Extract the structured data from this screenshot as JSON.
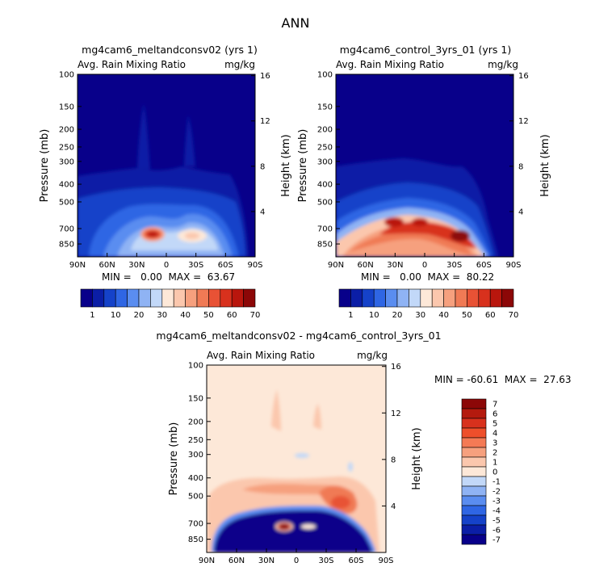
{
  "figure_title": "ANN",
  "panels": [
    {
      "title": "mg4cam6_meltandconsv02 (yrs 1)",
      "variable": "Avg. Rain Mixing Ratio",
      "units": "mg/kg",
      "ylabel": "Pressure (mb)",
      "y2label": "Height (km)",
      "stats_text": "MIN =   0.00  MAX =  63.67"
    },
    {
      "title": "mg4cam6_control_3yrs_01 (yrs 1)",
      "variable": "Avg. Rain Mixing Ratio",
      "units": "mg/kg",
      "ylabel": "Pressure (mb)",
      "y2label": "Height (km)",
      "stats_text": "MIN =   0.00  MAX =  80.22"
    },
    {
      "title": "mg4cam6_meltandconsv02 - mg4cam6_control_3yrs_01",
      "variable": "Avg. Rain Mixing Ratio",
      "units": "mg/kg",
      "ylabel": "Pressure (mb)",
      "y2label": "Height (km)",
      "stats_text": "MIN = -60.61  MAX =  27.63"
    }
  ],
  "colorbars": {
    "abs": {
      "labels": [
        "1",
        "10",
        "20",
        "30",
        "40",
        "50",
        "60",
        "70"
      ],
      "colors": [
        "#08008a",
        "#0b1ea6",
        "#1542c9",
        "#2f66e4",
        "#5a8df0",
        "#8fb3f4",
        "#c2d8f8",
        "#fde8d8",
        "#fbc7ad",
        "#f6a07e",
        "#f07a55",
        "#e85235",
        "#d8311d",
        "#b9160d",
        "#8c0707"
      ]
    },
    "diff": {
      "labels": [
        "7",
        "6",
        "5",
        "4",
        "3",
        "2",
        "1",
        "0",
        "-1",
        "-2",
        "-3",
        "-4",
        "-5",
        "-6",
        "-7"
      ],
      "colors": [
        "#8c0707",
        "#b41a0e",
        "#d8311d",
        "#ee4f2b",
        "#f47a55",
        "#f6a07e",
        "#fbc7ad",
        "#fde8d8",
        "#c2d8f8",
        "#8fb3f4",
        "#5a8df0",
        "#2f66e4",
        "#1542c9",
        "#0b1ea6",
        "#08008a"
      ]
    }
  },
  "chart_data": [
    {
      "type": "heatmap",
      "title": "mg4cam6_meltandconsv02 (yrs 1)",
      "x_ticks": [
        "90N",
        "60N",
        "30N",
        "0",
        "30S",
        "60S",
        "90S"
      ],
      "y_ticks_pressure": [
        100,
        150,
        200,
        250,
        300,
        400,
        500,
        700,
        850
      ],
      "y_ticks_height_km": [
        4,
        8,
        12,
        16
      ],
      "xlim": [
        "90N",
        "90S"
      ],
      "ylim_mb": [
        1000,
        100
      ],
      "min": 0.0,
      "max": 63.67,
      "features": [
        {
          "desc": "peak rain mixing ratio near 15N, 700 mb",
          "lat": 15,
          "p_mb": 700,
          "value": 63
        },
        {
          "desc": "secondary maximum near 25S, 700 mb",
          "lat": -25,
          "p_mb": 700,
          "value": 40
        },
        {
          "desc": "rain-free region above ~350-550 mb",
          "value": 0
        }
      ]
    },
    {
      "type": "heatmap",
      "title": "mg4cam6_control_3yrs_01 (yrs 1)",
      "x_ticks": [
        "90N",
        "60N",
        "30N",
        "0",
        "30S",
        "60S",
        "90S"
      ],
      "y_ticks_pressure": [
        100,
        150,
        200,
        250,
        300,
        400,
        500,
        700,
        850
      ],
      "y_ticks_height_km": [
        4,
        8,
        12,
        16
      ],
      "xlim": [
        "90N",
        "90S"
      ],
      "ylim_mb": [
        1000,
        100
      ],
      "min": 0.0,
      "max": 80.22,
      "features": [
        {
          "desc": "broad arch of values 40-60 near 600 mb across tropics",
          "lat": 0,
          "p_mb": 620,
          "value": 60
        },
        {
          "desc": "maximum near 35S, 700 mb",
          "lat": -35,
          "p_mb": 710,
          "value": 80
        }
      ]
    },
    {
      "type": "heatmap",
      "title": "mg4cam6_meltandconsv02 - mg4cam6_control_3yrs_01",
      "x_ticks": [
        "90N",
        "60N",
        "30N",
        "0",
        "30S",
        "60S",
        "90S"
      ],
      "y_ticks_pressure": [
        100,
        150,
        200,
        250,
        300,
        400,
        500,
        700,
        850
      ],
      "y_ticks_height_km": [
        4,
        8,
        12,
        16
      ],
      "xlim": [
        "90N",
        "90S"
      ],
      "ylim_mb": [
        1000,
        100
      ],
      "min": -60.61,
      "max": 27.63,
      "features": [
        {
          "desc": "strong negative difference below ~550 mb across tropics",
          "value": -7
        },
        {
          "desc": "positive band near 400-550 mb",
          "value": 2
        },
        {
          "desc": "positive maximum near 15N, 700 mb",
          "lat": 15,
          "p_mb": 700,
          "value": 7
        }
      ]
    }
  ]
}
